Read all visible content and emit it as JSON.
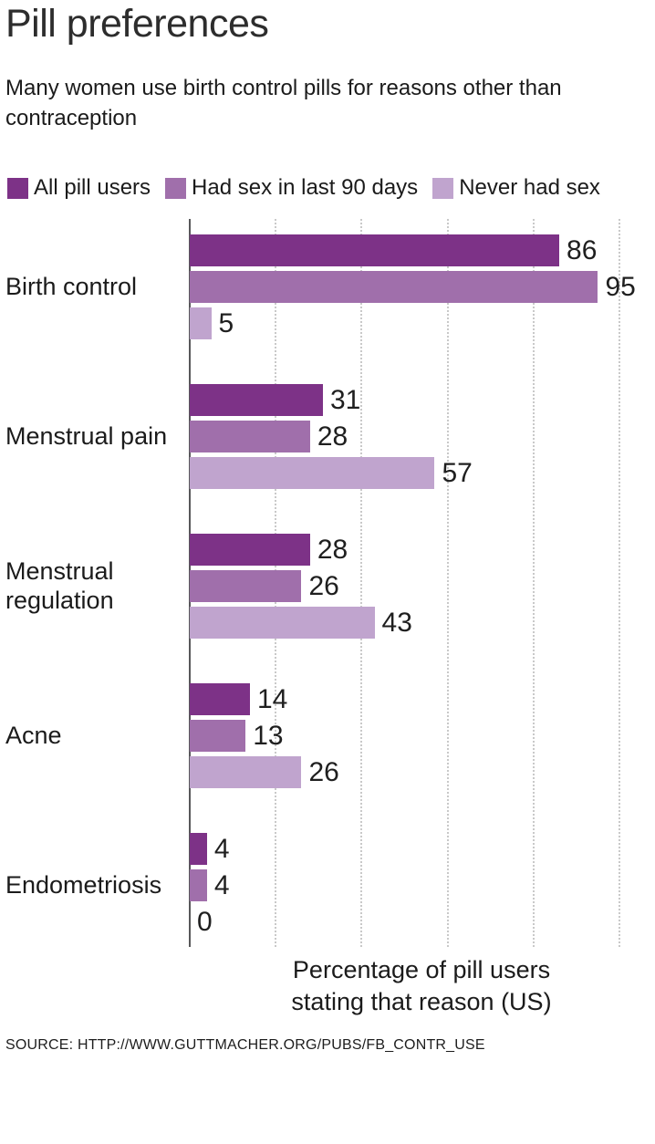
{
  "header": {
    "title": "Pill preferences",
    "subtitle": "Many women use birth control pills for reasons other than contraception"
  },
  "legend": [
    {
      "label": "All pill users",
      "color": "#7d3287"
    },
    {
      "label": "Had sex in last 90 days",
      "color": "#a06fab"
    },
    {
      "label": "Never had sex",
      "color": "#c0a4ce"
    }
  ],
  "chart_data": {
    "type": "bar",
    "orientation": "horizontal",
    "title": "Pill preferences",
    "subtitle": "Many women use birth control pills for reasons other than contraception",
    "categories": [
      "Birth control",
      "Menstrual pain",
      "Menstrual regulation",
      "Acne",
      "Endometriosis"
    ],
    "series": [
      {
        "name": "All pill users",
        "color": "#7d3287",
        "values": [
          86,
          31,
          28,
          14,
          4
        ]
      },
      {
        "name": "Had sex in last 90 days",
        "color": "#a06fab",
        "values": [
          95,
          28,
          26,
          13,
          4
        ]
      },
      {
        "name": "Never had sex",
        "color": "#c0a4ce",
        "values": [
          5,
          57,
          43,
          26,
          0
        ]
      }
    ],
    "xlabel": "Percentage of pill users stating that reason (US)",
    "xlim": [
      0,
      100
    ],
    "gridlines": [
      20,
      40,
      60,
      80,
      100
    ],
    "grid_style": "dotted",
    "value_labels": true,
    "legend_position": "top"
  },
  "footer": {
    "source": "SOURCE: HTTP://WWW.GUTTMACHER.ORG/PUBS/FB_CONTR_USE"
  },
  "colors": {
    "series_dark": "#7d3287",
    "series_medium": "#a06fab",
    "series_light": "#c0a4ce",
    "text": "#1b1b1b",
    "axis": "#58585a",
    "gridline": "#c9c9c9",
    "background": "#ffffff"
  }
}
